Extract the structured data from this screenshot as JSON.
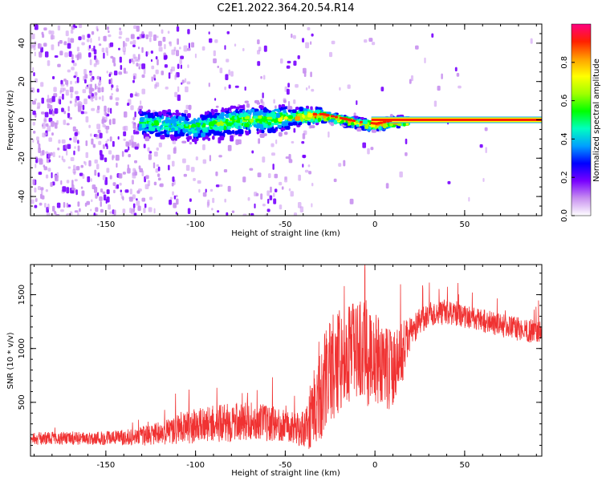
{
  "figure": {
    "title": "C2E1.2022.364.20.54.R14"
  },
  "chart_data": [
    {
      "type": "heatmap",
      "name": "spectrogram",
      "xlabel": "Height of straight line (km)",
      "ylabel": "Frequency (Hz)",
      "xlim": [
        -192,
        93
      ],
      "ylim": [
        -50,
        50
      ],
      "xticks": [
        -150,
        -100,
        -50,
        0,
        50
      ],
      "yticks": [
        -40,
        -20,
        0,
        20,
        40
      ],
      "grid": false,
      "colorbar": {
        "label": "Normalized spectral amplitude",
        "range": [
          0,
          1
        ],
        "ticks": [
          0.0,
          0.2,
          0.4,
          0.6,
          0.8
        ],
        "colormap": "rainbow",
        "colors": [
          "#ffffff",
          "#c890f0",
          "#7800ff",
          "#0000ff",
          "#00a0ff",
          "#00ffc0",
          "#00ff00",
          "#a0ff00",
          "#ffff00",
          "#ffa000",
          "#ff2000",
          "#ff0080"
        ]
      },
      "ridge": {
        "description_points_x": [
          -130,
          -115,
          -100,
          -90,
          -80,
          -70,
          -60,
          -50,
          -40,
          -30,
          -20,
          -10,
          0,
          10,
          20,
          93
        ],
        "description_points_y": [
          -1,
          -2,
          -3,
          -1,
          0,
          1,
          1,
          2,
          3,
          3,
          1,
          -1,
          -2,
          0,
          0,
          0
        ]
      }
    },
    {
      "type": "line",
      "name": "snr",
      "xlabel": "Height of straight line (km)",
      "ylabel": "SNR (10 * v/v)",
      "xlim": [
        -192,
        93
      ],
      "ylim": [
        0,
        1780
      ],
      "xticks": [
        -150,
        -100,
        -50,
        0,
        50
      ],
      "yticks": [
        500,
        1000,
        1500
      ],
      "grid": false,
      "series": [
        {
          "color": "#f03232",
          "x": [
            -192,
            -180,
            -170,
            -160,
            -150,
            -140,
            -130,
            -120,
            -110,
            -100,
            -90,
            -80,
            -70,
            -60,
            -50,
            -45,
            -40,
            -35,
            -30,
            -25,
            -20,
            -15,
            -10,
            -5,
            0,
            5,
            10,
            15,
            20,
            25,
            30,
            40,
            50,
            60,
            70,
            80,
            93
          ],
          "y": [
            160,
            170,
            165,
            165,
            170,
            175,
            185,
            210,
            250,
            280,
            300,
            310,
            330,
            310,
            290,
            260,
            250,
            400,
            600,
            800,
            900,
            950,
            1000,
            950,
            900,
            850,
            800,
            950,
            1150,
            1250,
            1320,
            1330,
            1300,
            1260,
            1220,
            1180,
            1150
          ],
          "noise_amplitude": [
            60,
            60,
            60,
            60,
            70,
            70,
            90,
            110,
            140,
            160,
            170,
            180,
            180,
            170,
            150,
            140,
            180,
            350,
            450,
            500,
            500,
            450,
            450,
            500,
            450,
            400,
            380,
            300,
            150,
            120,
            110,
            110,
            110,
            110,
            110,
            110,
            110
          ]
        }
      ]
    }
  ]
}
